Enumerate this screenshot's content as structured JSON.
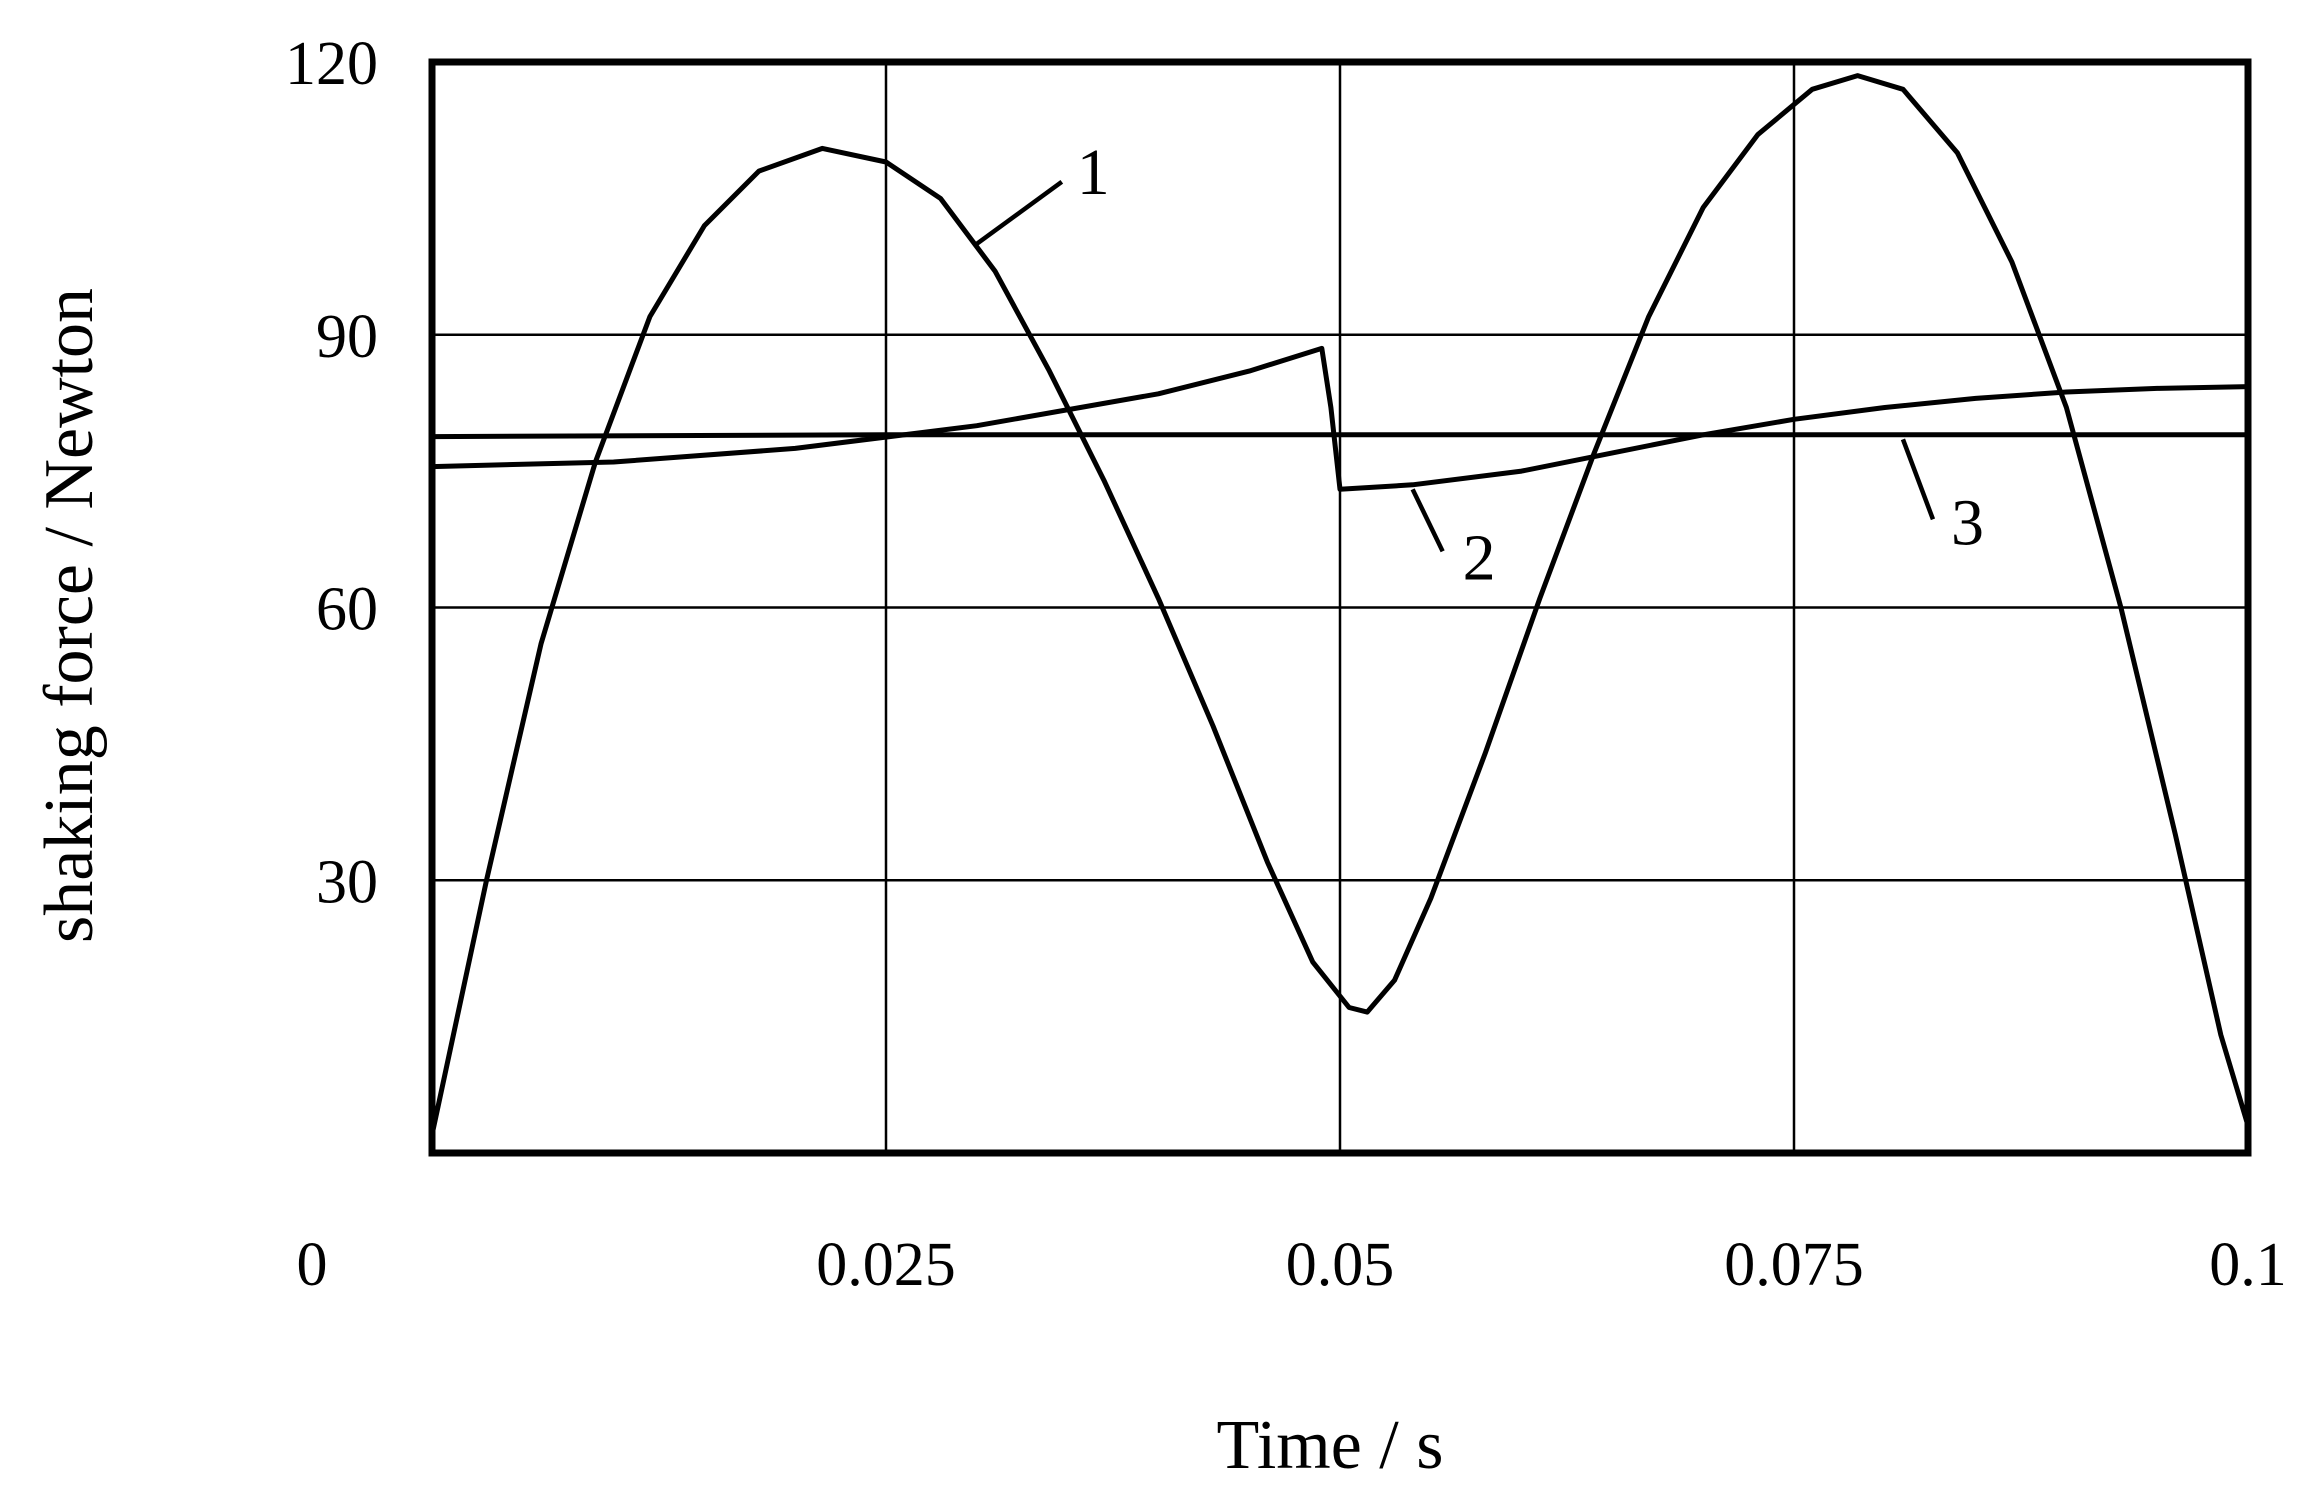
{
  "chart_data": {
    "type": "line",
    "title": "",
    "xlabel": "Time / s",
    "ylabel": "shaking force / Newton",
    "xlim": [
      0,
      0.1
    ],
    "ylim": [
      0,
      120
    ],
    "x_ticks": [
      0,
      0.025,
      0.05,
      0.075,
      0.1
    ],
    "x_tick_labels": [
      "0",
      "0.025",
      "0.05",
      "0.075",
      "0.1"
    ],
    "y_ticks": [
      30,
      60,
      90,
      120
    ],
    "y_tick_labels": [
      "30",
      "60",
      "90",
      "120"
    ],
    "grid": true,
    "legend": "none",
    "series": [
      {
        "label": "1",
        "label_anchor": [
          0.03,
          100
        ],
        "points": [
          [
            0,
            2
          ],
          [
            0.003,
            30
          ],
          [
            0.006,
            56
          ],
          [
            0.009,
            76
          ],
          [
            0.012,
            92
          ],
          [
            0.015,
            102
          ],
          [
            0.018,
            108
          ],
          [
            0.0215,
            110.5
          ],
          [
            0.025,
            109
          ],
          [
            0.028,
            105
          ],
          [
            0.031,
            97
          ],
          [
            0.034,
            86
          ],
          [
            0.037,
            74
          ],
          [
            0.04,
            61
          ],
          [
            0.043,
            47
          ],
          [
            0.046,
            32
          ],
          [
            0.0485,
            21
          ],
          [
            0.0505,
            16
          ],
          [
            0.0515,
            15.5
          ],
          [
            0.053,
            19
          ],
          [
            0.055,
            28
          ],
          [
            0.058,
            44
          ],
          [
            0.061,
            61
          ],
          [
            0.064,
            77
          ],
          [
            0.067,
            92
          ],
          [
            0.07,
            104
          ],
          [
            0.073,
            112
          ],
          [
            0.076,
            117
          ],
          [
            0.0785,
            118.5
          ],
          [
            0.081,
            117
          ],
          [
            0.084,
            110
          ],
          [
            0.087,
            98
          ],
          [
            0.09,
            82
          ],
          [
            0.093,
            60
          ],
          [
            0.096,
            35
          ],
          [
            0.0985,
            13
          ],
          [
            0.1,
            3
          ]
        ]
      },
      {
        "label": "2",
        "label_anchor": [
          0.054,
          73
        ],
        "points": [
          [
            0,
            75.5
          ],
          [
            0.01,
            76
          ],
          [
            0.02,
            77.5
          ],
          [
            0.03,
            80
          ],
          [
            0.04,
            83.5
          ],
          [
            0.045,
            86
          ],
          [
            0.049,
            88.5
          ],
          [
            0.0495,
            82
          ],
          [
            0.05,
            73
          ],
          [
            0.054,
            73.5
          ],
          [
            0.06,
            75
          ],
          [
            0.065,
            77
          ],
          [
            0.07,
            79
          ],
          [
            0.075,
            80.7
          ],
          [
            0.08,
            82
          ],
          [
            0.085,
            83
          ],
          [
            0.09,
            83.7
          ],
          [
            0.095,
            84.1
          ],
          [
            0.1,
            84.3
          ]
        ]
      },
      {
        "label": "3",
        "label_anchor": [
          0.081,
          78.5
        ],
        "points": [
          [
            0,
            78.8
          ],
          [
            0.025,
            79
          ],
          [
            0.05,
            79
          ],
          [
            0.075,
            79
          ],
          [
            0.1,
            79
          ]
        ]
      }
    ]
  }
}
